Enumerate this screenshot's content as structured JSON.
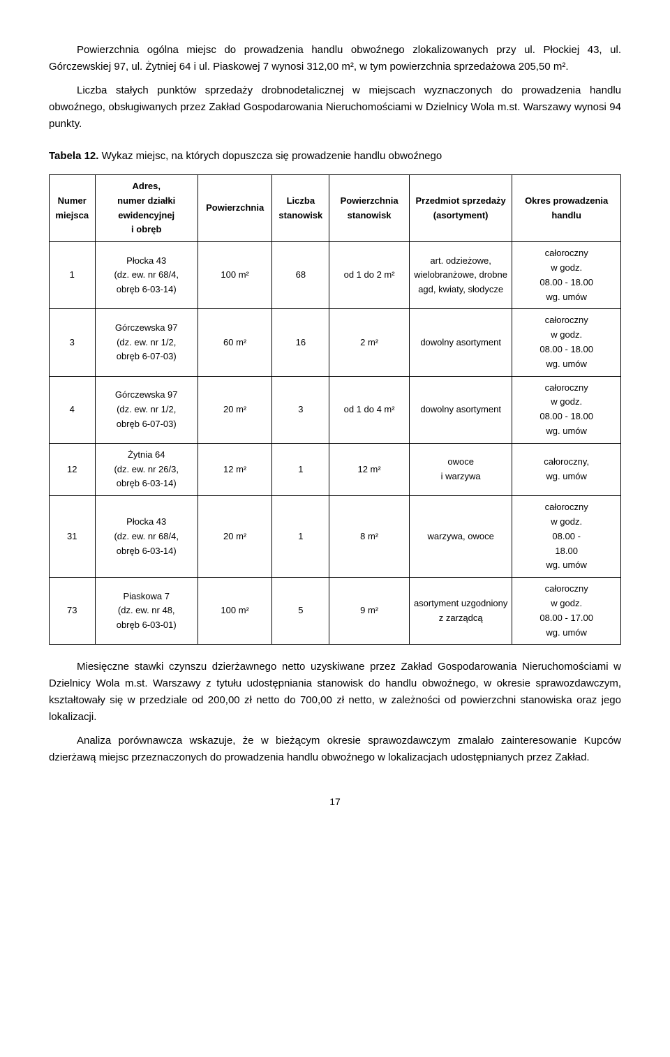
{
  "intro": {
    "p1": "Powierzchnia ogólna miejsc do prowadzenia handlu obwoźnego zlokalizowanych przy ul. Płockiej 43, ul. Górczewskiej 97, ul. Żytniej 64 i ul. Piaskowej 7 wynosi 312,00 m², w tym powierzchnia sprzedażowa 205,50 m².",
    "p2": "Liczba stałych punktów sprzedaży drobnodetalicznej w miejscach wyznaczonych do prowadzenia handlu obwoźnego, obsługiwanych przez Zakład Gospodarowania Nieruchomościami w Dzielnicy Wola m.st. Warszawy wynosi 94 punkty."
  },
  "table_caption_bold": "Tabela 12.",
  "table_caption_rest": " Wykaz miejsc, na których dopuszcza się prowadzenie handlu obwoźnego",
  "table": {
    "headers": {
      "c0": "Numer miejsca",
      "c1": "Adres,\nnumer działki ewidencyjnej\ni obręb",
      "c2": "Powierzchnia",
      "c3": "Liczba stanowisk",
      "c4": "Powierzchnia stanowisk",
      "c5": "Przedmiot sprzedaży (asortyment)",
      "c6": "Okres prowadzenia handlu"
    },
    "rows": [
      {
        "c0": "1",
        "c1": "Płocka 43\n(dz. ew. nr 68/4,\nobręb 6-03-14)",
        "c2": "100 m²",
        "c3": "68",
        "c4": "od 1 do 2 m²",
        "c5": "art. odzieżowe, wielobranżowe, drobne agd, kwiaty, słodycze",
        "c6": "całoroczny\nw godz.\n08.00 - 18.00\nwg. umów"
      },
      {
        "c0": "3",
        "c1": "Górczewska 97\n(dz. ew. nr 1/2,\nobręb 6-07-03)",
        "c2": "60 m²",
        "c3": "16",
        "c4": "2 m²",
        "c5": "dowolny asortyment",
        "c6": "całoroczny\nw godz.\n08.00 - 18.00\nwg. umów"
      },
      {
        "c0": "4",
        "c1": "Górczewska 97\n(dz. ew. nr 1/2,\nobręb 6-07-03)",
        "c2": "20 m²",
        "c3": "3",
        "c4": "od 1 do 4 m²",
        "c5": "dowolny asortyment",
        "c6": "całoroczny\nw godz.\n08.00 - 18.00\nwg. umów"
      },
      {
        "c0": "12",
        "c1": "Żytnia 64\n(dz. ew. nr 26/3,\nobręb 6-03-14)",
        "c2": "12 m²",
        "c3": "1",
        "c4": "12 m²",
        "c5": "owoce\ni warzywa",
        "c6": "całoroczny,\nwg. umów"
      },
      {
        "c0": "31",
        "c1": "Płocka 43\n(dz. ew. nr 68/4,\nobręb 6-03-14)",
        "c2": "20 m²",
        "c3": "1",
        "c4": "8 m²",
        "c5": "warzywa, owoce",
        "c6": "całoroczny\nw godz.\n08.00 -\n18.00\nwg. umów"
      },
      {
        "c0": "73",
        "c1": "Piaskowa 7\n(dz. ew. nr 48,\nobręb 6-03-01)",
        "c2": "100 m²",
        "c3": "5",
        "c4": "9 m²",
        "c5": "asortyment uzgodniony\nz zarządcą",
        "c6": "całoroczny\nw godz.\n08.00 - 17.00\nwg. umów"
      }
    ]
  },
  "outro": {
    "p1": "Miesięczne stawki czynszu dzierżawnego netto uzyskiwane przez Zakład Gospodarowania Nieruchomościami w Dzielnicy Wola m.st. Warszawy z tytułu udostępniania stanowisk do handlu obwoźnego, w okresie sprawozdawczym, kształtowały się w przedziale od 200,00 zł netto do 700,00 zł netto, w zależności od powierzchni stanowiska oraz jego lokalizacji.",
    "p2": "Analiza porównawcza wskazuje, że w bieżącym okresie sprawozdawczym zmalało zainteresowanie Kupców dzierżawą miejsc przeznaczonych do prowadzenia handlu obwoźnego w lokalizacjach udostępnianych przez Zakład."
  },
  "page_number": "17"
}
